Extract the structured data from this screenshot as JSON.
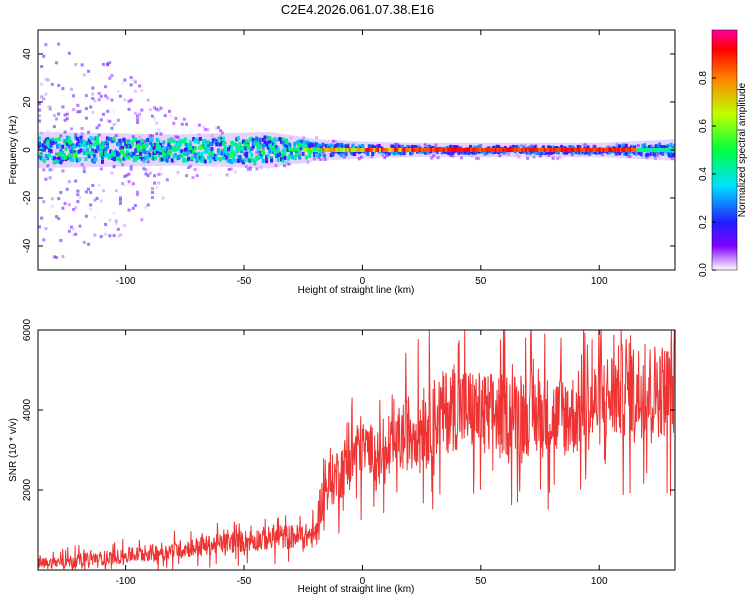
{
  "title": "C2E4.2026.061.07.38.E16",
  "chart_data": [
    {
      "type": "heatmap",
      "xlabel": "Height of straight line (km)",
      "ylabel": "Frequency (Hz)",
      "xlim": [
        -137,
        132
      ],
      "ylim": [
        -50,
        50
      ],
      "xticks": [
        "-100",
        "-50",
        "0",
        "50",
        "100"
      ],
      "xtick_values": [
        -100,
        -50,
        0,
        50,
        100
      ],
      "yticks": [
        "40",
        "20",
        "0",
        "-20",
        "-40"
      ],
      "ytick_values": [
        40,
        20,
        0,
        -20,
        -40
      ],
      "colorbar": {
        "label": "Normalized spectral amplitude",
        "range": [
          0,
          1
        ],
        "ticks": [
          "0.0",
          "0.2",
          "0.4",
          "0.6",
          "0.8"
        ],
        "tick_values": [
          0,
          0.2,
          0.4,
          0.6,
          0.8
        ]
      },
      "description_data": {
        "band_center_hz": 0,
        "band_halfwidth_hz": [
          [
            -137,
            6
          ],
          [
            -80,
            5
          ],
          [
            -40,
            6
          ],
          [
            -20,
            3
          ],
          [
            0,
            2
          ],
          [
            20,
            1.5
          ],
          [
            100,
            1.5
          ],
          [
            132,
            3
          ]
        ],
        "scatter_extent_hz": [
          [
            -137,
            48
          ],
          [
            -100,
            35
          ],
          [
            -80,
            15
          ],
          [
            -50,
            8
          ],
          [
            -20,
            6
          ],
          [
            0,
            3
          ],
          [
            132,
            3
          ]
        ]
      }
    },
    {
      "type": "line",
      "xlabel": "Height of straight line (km)",
      "ylabel": "SNR (10 * v/v)",
      "xlim": [
        -137,
        132
      ],
      "ylim": [
        0,
        6000
      ],
      "xticks": [
        "-100",
        "-50",
        "0",
        "50",
        "100"
      ],
      "xtick_values": [
        -100,
        -50,
        0,
        50,
        100
      ],
      "yticks": [
        "2000",
        "4000",
        "6000"
      ],
      "ytick_values": [
        2000,
        4000,
        6000
      ],
      "color": "#ee3333",
      "trend": {
        "x": [
          -137,
          -120,
          -100,
          -80,
          -60,
          -40,
          -25,
          -20,
          -18,
          -15,
          -10,
          -5,
          0,
          5,
          10,
          15,
          20,
          30,
          40,
          50,
          60,
          70,
          80,
          90,
          100,
          110,
          120,
          132
        ],
        "y": [
          150,
          250,
          350,
          500,
          650,
          800,
          850,
          850,
          1600,
          2100,
          2400,
          2800,
          3100,
          3000,
          2700,
          3200,
          3500,
          3800,
          4100,
          3900,
          3900,
          3900,
          3800,
          3900,
          4200,
          4500,
          4500,
          4500
        ]
      }
    }
  ]
}
